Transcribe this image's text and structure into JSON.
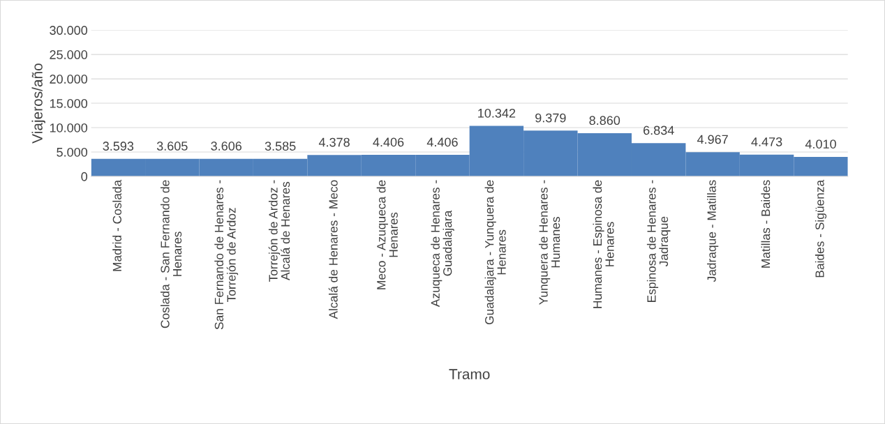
{
  "chart_data": {
    "type": "bar",
    "xlabel": "Tramo",
    "ylabel": "Viajeros/año",
    "categories": [
      "Madrid - Coslada",
      "Coslada - San Fernando de Henares",
      "San Fernando de Henares - Torrejón de Ardoz",
      "Torrejón de Ardoz - Alcalá de Henares",
      "Alcalá de Henares - Meco",
      "Meco - Azuqueca de Henares",
      "Azuqueca de Henares - Guadalajara",
      "Guadalajara - Yunquera de Henares",
      "Yunquera de Henares - Humanes",
      "Humanes - Espinosa de Henares",
      "Espinosa de Henares - Jadraque",
      "Jadraque - Matillas",
      "Matillas - Baides",
      "Baides - Sigüenza"
    ],
    "values": [
      3593,
      3605,
      3606,
      3585,
      4378,
      4406,
      4406,
      10342,
      9379,
      8860,
      6834,
      4967,
      4473,
      4010
    ],
    "value_labels": [
      "3.593",
      "3.605",
      "3.606",
      "3.585",
      "4.378",
      "4.406",
      "4.406",
      "10.342",
      "9.379",
      "8.860",
      "6.834",
      "4.967",
      "4.473",
      "4.010"
    ],
    "color": "#4f81bd",
    "ylim": [
      0,
      30000
    ],
    "yticks": [
      0,
      {
        "value": 5000,
        "label": "5.000"
      },
      {
        "value": 10000,
        "label": "10.000"
      },
      {
        "value": 15000,
        "label": "15.000"
      },
      {
        "value": 20000,
        "label": "20.000"
      },
      {
        "value": 25000,
        "label": "25.000"
      },
      {
        "value": 30000,
        "label": "30.000"
      }
    ],
    "grid": "y",
    "legend": false
  }
}
